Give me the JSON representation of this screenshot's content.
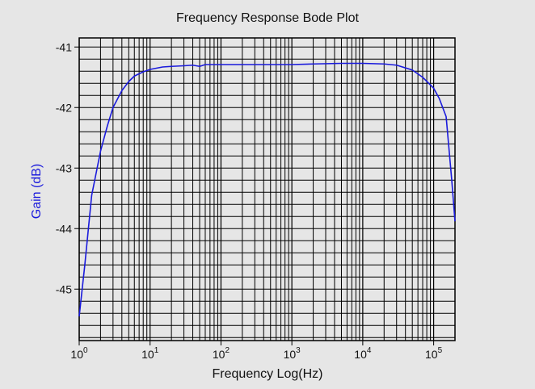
{
  "chart_data": {
    "type": "line",
    "title": "Frequency Response Bode Plot",
    "xlabel": "Frequency Log(Hz)",
    "ylabel": "Gain (dB)",
    "x_scale": "log",
    "xlim": [
      1,
      200000
    ],
    "ylim": [
      -45.85,
      -40.85
    ],
    "x_ticks": [
      {
        "base": "10",
        "exp": "0",
        "value": 1
      },
      {
        "base": "10",
        "exp": "1",
        "value": 10
      },
      {
        "base": "10",
        "exp": "2",
        "value": 100
      },
      {
        "base": "10",
        "exp": "3",
        "value": 1000
      },
      {
        "base": "10",
        "exp": "4",
        "value": 10000
      },
      {
        "base": "10",
        "exp": "5",
        "value": 100000
      }
    ],
    "y_ticks": [
      {
        "label": "-41",
        "value": -41
      },
      {
        "label": "-42",
        "value": -42
      },
      {
        "label": "-43",
        "value": -43
      },
      {
        "label": "-44",
        "value": -44
      },
      {
        "label": "-45",
        "value": -45
      }
    ],
    "y_minor_step": 0.2,
    "grid": true,
    "line_color": "#1a1adc",
    "ylabel_color": "#1a1adc",
    "series": [
      {
        "x": [
          1,
          1.2,
          1.5,
          2,
          2.5,
          3,
          4,
          5,
          6,
          8,
          10,
          15,
          20,
          30,
          40,
          50,
          60,
          80,
          100,
          200,
          500,
          1000,
          2000,
          5000,
          10000,
          20000,
          30000,
          50000,
          70000,
          100000,
          120000,
          150000,
          180000,
          200000
        ],
        "y": [
          -45.45,
          -44.6,
          -43.45,
          -42.72,
          -42.3,
          -42.0,
          -41.72,
          -41.57,
          -41.48,
          -41.41,
          -41.37,
          -41.33,
          -41.32,
          -41.31,
          -41.3,
          -41.32,
          -41.29,
          -41.29,
          -41.29,
          -41.29,
          -41.29,
          -41.29,
          -41.28,
          -41.27,
          -41.27,
          -41.28,
          -41.3,
          -41.38,
          -41.5,
          -41.68,
          -41.85,
          -42.15,
          -43.2,
          -43.88
        ]
      }
    ]
  }
}
